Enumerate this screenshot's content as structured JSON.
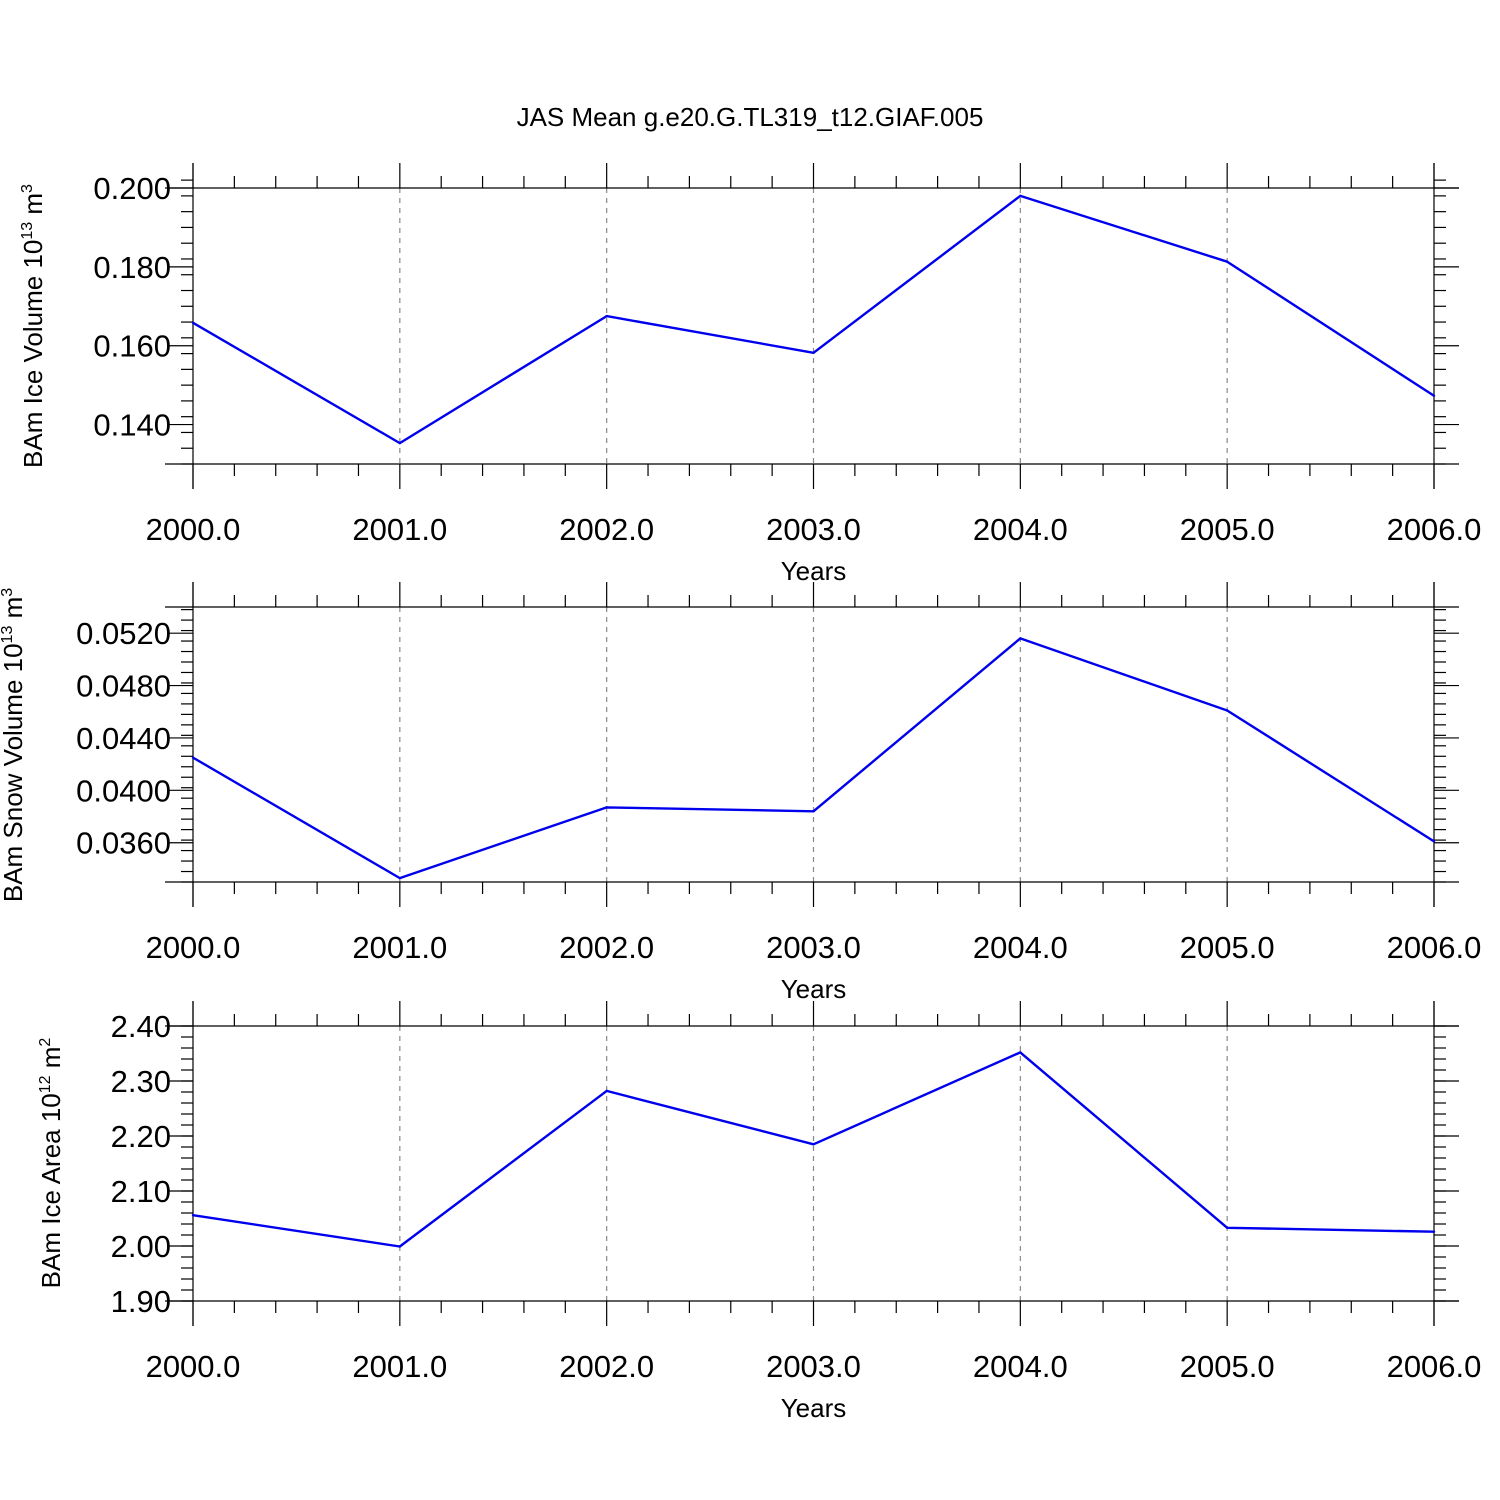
{
  "title": "JAS Mean g.e20.G.TL319_t12.GIAF.005",
  "colors": {
    "series": "#0000ee",
    "grid": "#888888",
    "frame": "#000000"
  },
  "chart_data": [
    {
      "type": "line",
      "x": [
        2000,
        2001,
        2002,
        2003,
        2004,
        2005,
        2006
      ],
      "values": [
        0.1658,
        0.1353,
        0.1675,
        0.1582,
        0.198,
        0.1813,
        0.1473
      ],
      "xlabel": "Years",
      "ylabel": {
        "text": "BAm Ice Volume 10",
        "exp": "13",
        "unit": " m",
        "unit_exp": "3"
      },
      "xlim": [
        2000,
        2006
      ],
      "ylim": [
        0.13,
        0.2
      ]
    },
    {
      "type": "line",
      "x": [
        2000,
        2001,
        2002,
        2003,
        2004,
        2005,
        2006
      ],
      "values": [
        0.0425,
        0.0333,
        0.0387,
        0.0384,
        0.0516,
        0.0461,
        0.0361
      ],
      "xlabel": "Years",
      "ylabel": {
        "text": "BAm Snow Volume 10",
        "exp": "13",
        "unit": " m",
        "unit_exp": "3"
      },
      "xlim": [
        2000,
        2006
      ],
      "ylim": [
        0.033,
        0.054
      ]
    },
    {
      "type": "line",
      "x": [
        2000,
        2001,
        2002,
        2003,
        2004,
        2005,
        2006
      ],
      "values": [
        2.056,
        1.999,
        2.282,
        2.185,
        2.352,
        2.033,
        2.026
      ],
      "xlabel": "Years",
      "ylabel": {
        "text": "BAm Ice Area 10",
        "exp": "12",
        "unit": " m",
        "unit_exp": "2"
      },
      "xlim": [
        2000,
        2006
      ],
      "ylim": [
        1.9,
        2.4
      ]
    }
  ],
  "panels": [
    {
      "x_ticks": [
        "2000.0",
        "2001.0",
        "2002.0",
        "2003.0",
        "2004.0",
        "2005.0",
        "2006.0"
      ],
      "y_ticks": [
        {
          "value": 0.14,
          "label": "0.140"
        },
        {
          "value": 0.16,
          "label": "0.160"
        },
        {
          "value": 0.18,
          "label": "0.180"
        },
        {
          "value": 0.2,
          "label": "0.200"
        }
      ]
    },
    {
      "x_ticks": [
        "2000.0",
        "2001.0",
        "2002.0",
        "2003.0",
        "2004.0",
        "2005.0",
        "2006.0"
      ],
      "y_ticks": [
        {
          "value": 0.036,
          "label": "0.0360"
        },
        {
          "value": 0.04,
          "label": "0.0400"
        },
        {
          "value": 0.044,
          "label": "0.0440"
        },
        {
          "value": 0.048,
          "label": "0.0480"
        },
        {
          "value": 0.052,
          "label": "0.0520"
        }
      ]
    },
    {
      "x_ticks": [
        "2000.0",
        "2001.0",
        "2002.0",
        "2003.0",
        "2004.0",
        "2005.0",
        "2006.0"
      ],
      "y_ticks": [
        {
          "value": 1.9,
          "label": "1.90"
        },
        {
          "value": 2.0,
          "label": "2.00"
        },
        {
          "value": 2.1,
          "label": "2.10"
        },
        {
          "value": 2.2,
          "label": "2.20"
        },
        {
          "value": 2.3,
          "label": "2.30"
        },
        {
          "value": 2.4,
          "label": "2.40"
        }
      ]
    }
  ]
}
